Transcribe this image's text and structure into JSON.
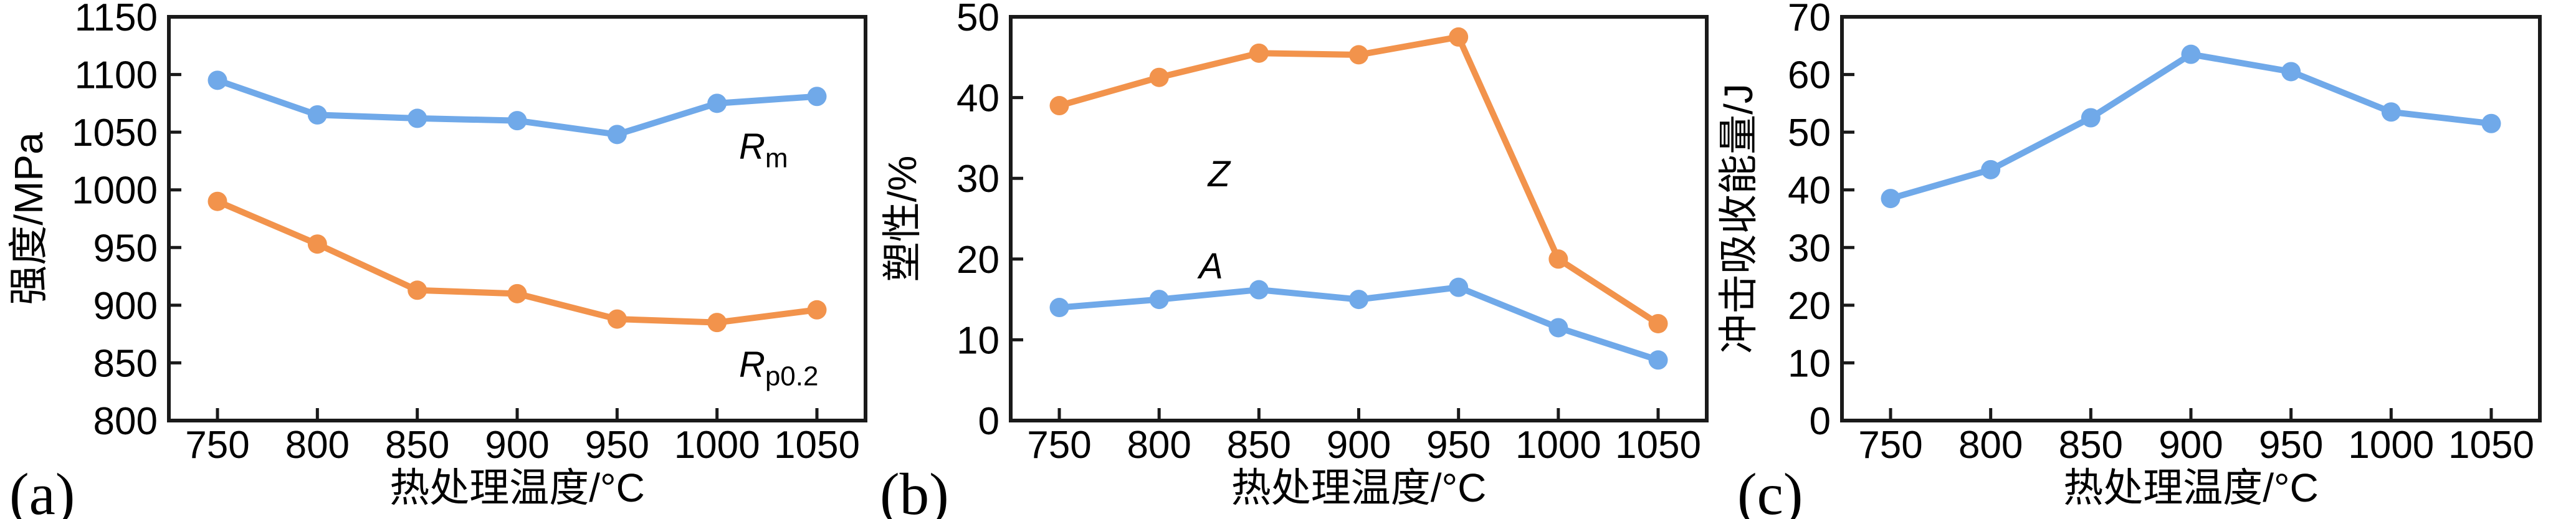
{
  "figure": {
    "background": "#ffffff",
    "axis_color": "#1a1a1a",
    "text_color": "#000000",
    "series_colors": {
      "blue": "#70A9E9",
      "orange": "#F2934C"
    }
  },
  "chart_data": [
    {
      "panel_label": "(a)",
      "type": "line",
      "x": [
        750,
        800,
        850,
        900,
        950,
        1000,
        1050
      ],
      "xlabel": "热处理温度/°C",
      "ylabel": "强度/MPa",
      "ylim": [
        800,
        1150
      ],
      "ytick_step": 50,
      "grid": false,
      "legend": "inline-annotations",
      "series": [
        {
          "name": "Rm",
          "color": "#70A9E9",
          "values": [
            1095,
            1065,
            1062,
            1060,
            1048,
            1075,
            1081
          ]
        },
        {
          "name": "Rp0.2",
          "color": "#F2934C",
          "values": [
            990,
            953,
            913,
            910,
            888,
            885,
            896
          ]
        }
      ],
      "annotations": [
        {
          "main": "R",
          "sub": "m",
          "x": 1011,
          "y": 1027,
          "anchor": "start"
        },
        {
          "main": "R",
          "sub": "p0.2",
          "x": 1011,
          "y": 838,
          "anchor": "start"
        }
      ]
    },
    {
      "panel_label": "(b)",
      "type": "line",
      "x": [
        750,
        800,
        850,
        900,
        950,
        1000,
        1050
      ],
      "xlabel": "热处理温度/°C",
      "ylabel": "塑性/%",
      "ylim": [
        0,
        50
      ],
      "ytick_step": 10,
      "grid": false,
      "legend": "inline-annotations",
      "series": [
        {
          "name": "Z",
          "color": "#F2934C",
          "values": [
            39,
            42.5,
            45.5,
            45.3,
            47.5,
            20,
            12
          ]
        },
        {
          "name": "A",
          "color": "#70A9E9",
          "values": [
            14,
            15,
            16.2,
            15,
            16.5,
            11.5,
            7.5
          ]
        }
      ],
      "annotations": [
        {
          "main": "Z",
          "sub": "",
          "x": 830,
          "y": 29,
          "anchor": "middle"
        },
        {
          "main": "A",
          "sub": "",
          "x": 826,
          "y": 17.6,
          "anchor": "middle"
        }
      ]
    },
    {
      "panel_label": "(c)",
      "type": "line",
      "x": [
        750,
        800,
        850,
        900,
        950,
        1000,
        1050
      ],
      "xlabel": "热处理温度/°C",
      "ylabel": "冲击吸收能量/J",
      "ylim": [
        0,
        70
      ],
      "ytick_step": 10,
      "grid": false,
      "legend": "none",
      "series": [
        {
          "name": "impact-energy",
          "color": "#70A9E9",
          "values": [
            38.5,
            43.5,
            52.5,
            63.5,
            60.5,
            53.5,
            51.5
          ]
        }
      ],
      "annotations": []
    }
  ]
}
